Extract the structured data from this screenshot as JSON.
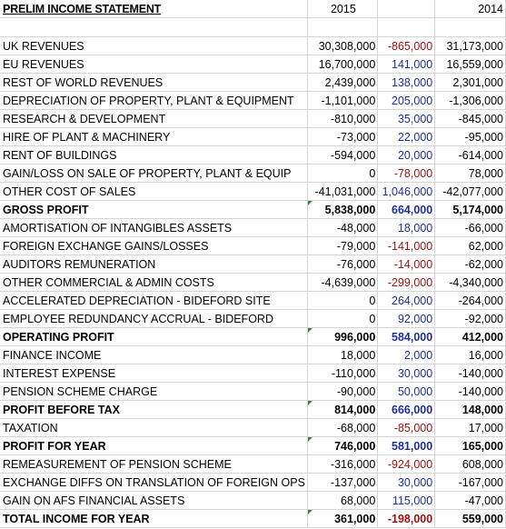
{
  "sheet": {
    "title": "PRELIM INCOME STATEMENT",
    "col_2015": "2015",
    "col_2014": "2014",
    "rows": [
      {
        "label": "UK REVENUES",
        "y2015": "30,308,000",
        "var": "-865,000",
        "y2014": "31,173,000",
        "sign": "neg",
        "bold": false,
        "marker": false
      },
      {
        "label": "EU REVENUES",
        "y2015": "16,700,000",
        "var": "141,000",
        "y2014": "16,559,000",
        "sign": "pos",
        "bold": false,
        "marker": false
      },
      {
        "label": "REST OF WORLD REVENUES",
        "y2015": "2,439,000",
        "var": "138,000",
        "y2014": "2,301,000",
        "sign": "pos",
        "bold": false,
        "marker": false
      },
      {
        "label": "DEPRECIATION OF PROPERTY, PLANT & EQUIPMENT",
        "y2015": "-1,101,000",
        "var": "205,000",
        "y2014": "-1,306,000",
        "sign": "pos",
        "bold": false,
        "marker": false
      },
      {
        "label": "RESEARCH & DEVELOPMENT",
        "y2015": "-810,000",
        "var": "35,000",
        "y2014": "-845,000",
        "sign": "pos",
        "bold": false,
        "marker": false
      },
      {
        "label": "HIRE OF PLANT & MACHINERY",
        "y2015": "-73,000",
        "var": "22,000",
        "y2014": "-95,000",
        "sign": "pos",
        "bold": false,
        "marker": false
      },
      {
        "label": "RENT OF BUILDINGS",
        "y2015": "-594,000",
        "var": "20,000",
        "y2014": "-614,000",
        "sign": "pos",
        "bold": false,
        "marker": false
      },
      {
        "label": "GAIN/LOSS ON SALE OF PROPERTY, PLANT & EQUIP",
        "y2015": "0",
        "var": "-78,000",
        "y2014": "78,000",
        "sign": "neg",
        "bold": false,
        "marker": false
      },
      {
        "label": "OTHER COST OF SALES",
        "y2015": "-41,031,000",
        "var": "1,046,000",
        "y2014": "-42,077,000",
        "sign": "pos",
        "bold": false,
        "marker": false
      },
      {
        "label": "GROSS PROFIT",
        "y2015": "5,838,000",
        "var": "664,000",
        "y2014": "5,174,000",
        "sign": "pos",
        "bold": true,
        "marker": true
      },
      {
        "label": "AMORTISATION OF INTANGIBLES ASSETS",
        "y2015": "-48,000",
        "var": "18,000",
        "y2014": "-66,000",
        "sign": "pos",
        "bold": false,
        "marker": false
      },
      {
        "label": "FOREIGN EXCHANGE GAINS/LOSSES",
        "y2015": "-79,000",
        "var": "-141,000",
        "y2014": "62,000",
        "sign": "neg",
        "bold": false,
        "marker": false
      },
      {
        "label": "AUDITORS REMUNERATION",
        "y2015": "-76,000",
        "var": "-14,000",
        "y2014": "-62,000",
        "sign": "neg",
        "bold": false,
        "marker": false
      },
      {
        "label": "OTHER COMMERCIAL & ADMIN COSTS",
        "y2015": "-4,639,000",
        "var": "-299,000",
        "y2014": "-4,340,000",
        "sign": "neg",
        "bold": false,
        "marker": false
      },
      {
        "label": "ACCELERATED DEPRECIATION - BIDEFORD SITE",
        "y2015": "0",
        "var": "264,000",
        "y2014": "-264,000",
        "sign": "pos",
        "bold": false,
        "marker": false
      },
      {
        "label": "EMPLOYEE REDUNDANCY ACCRUAL - BIDEFORD",
        "y2015": "0",
        "var": "92,000",
        "y2014": "-92,000",
        "sign": "pos",
        "bold": false,
        "marker": false
      },
      {
        "label": "OPERATING PROFIT",
        "y2015": "996,000",
        "var": "584,000",
        "y2014": "412,000",
        "sign": "pos",
        "bold": true,
        "marker": true
      },
      {
        "label": "FINANCE INCOME",
        "y2015": "18,000",
        "var": "2,000",
        "y2014": "16,000",
        "sign": "pos",
        "bold": false,
        "marker": false
      },
      {
        "label": "INTEREST EXPENSE",
        "y2015": "-110,000",
        "var": "30,000",
        "y2014": "-140,000",
        "sign": "pos",
        "bold": false,
        "marker": false
      },
      {
        "label": "PENSION SCHEME CHARGE",
        "y2015": "-90,000",
        "var": "50,000",
        "y2014": "-140,000",
        "sign": "pos",
        "bold": false,
        "marker": false
      },
      {
        "label": "PROFIT BEFORE TAX",
        "y2015": "814,000",
        "var": "666,000",
        "y2014": "148,000",
        "sign": "pos",
        "bold": true,
        "marker": true
      },
      {
        "label": "TAXATION",
        "y2015": "-68,000",
        "var": "-85,000",
        "y2014": "17,000",
        "sign": "neg",
        "bold": false,
        "marker": false
      },
      {
        "label": "PROFIT FOR YEAR",
        "y2015": "746,000",
        "var": "581,000",
        "y2014": "165,000",
        "sign": "pos",
        "bold": true,
        "marker": true
      },
      {
        "label": "REMEASUREMENT OF PENSION SCHEME",
        "y2015": "-316,000",
        "var": "-924,000",
        "y2014": "608,000",
        "sign": "neg",
        "bold": false,
        "marker": false
      },
      {
        "label": "EXCHANGE DIFFS ON TRANSLATION OF FOREIGN OPS",
        "y2015": "-137,000",
        "var": "30,000",
        "y2014": "-167,000",
        "sign": "pos",
        "bold": false,
        "marker": false
      },
      {
        "label": "GAIN ON AFS FINANCIAL ASSETS",
        "y2015": "68,000",
        "var": "115,000",
        "y2014": "-47,000",
        "sign": "pos",
        "bold": false,
        "marker": false
      },
      {
        "label": "TOTAL INCOME FOR YEAR",
        "y2015": "361,000",
        "var": "-198,000",
        "y2014": "559,000",
        "sign": "neg",
        "bold": true,
        "marker": true
      }
    ]
  },
  "colors": {
    "variance_positive": "#1f2f9a",
    "variance_negative": "#9e1010",
    "error_marker": "#2e8b3a",
    "gridline": "#d4d4d4"
  }
}
